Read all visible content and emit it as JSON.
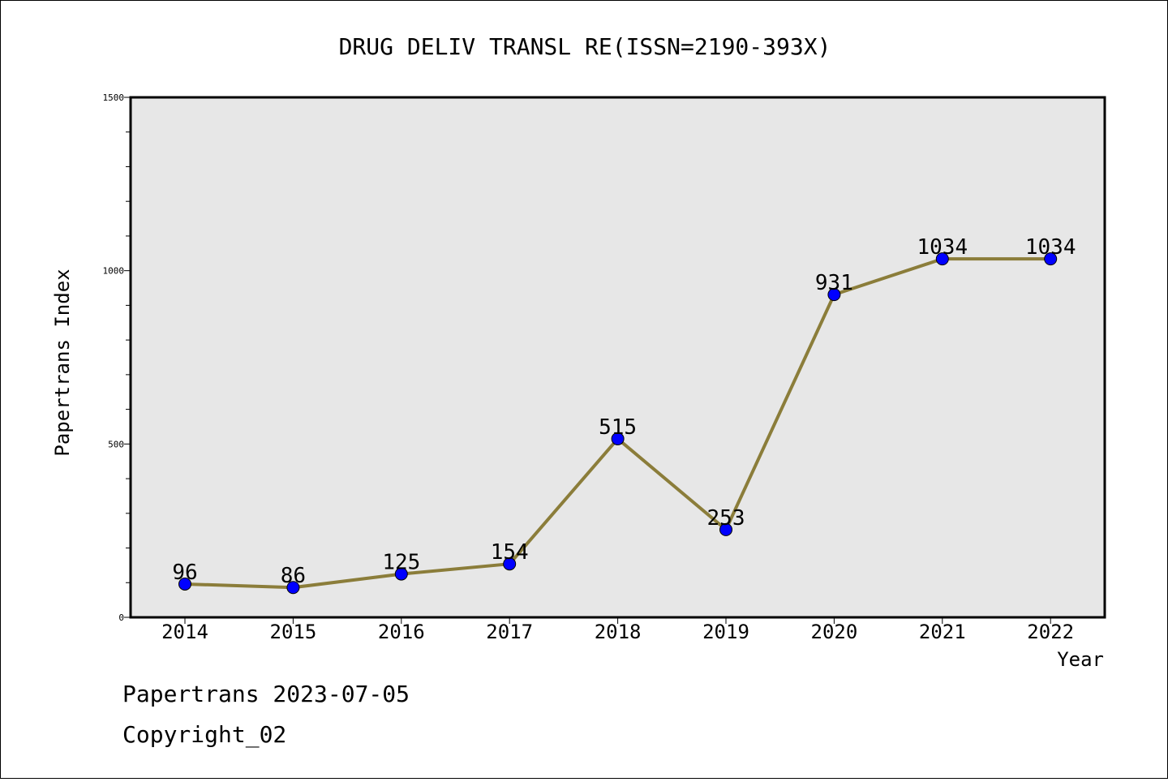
{
  "chart_data": {
    "type": "line",
    "title": "DRUG DELIV TRANSL RE(ISSN=2190-393X)",
    "xlabel": "Year",
    "ylabel": "Papertrans Index",
    "categories": [
      "2014",
      "2015",
      "2016",
      "2017",
      "2018",
      "2019",
      "2020",
      "2021",
      "2022"
    ],
    "series": [
      {
        "values": [
          96,
          86,
          125,
          154,
          515,
          253,
          931,
          1034,
          1034
        ]
      }
    ],
    "ylim": [
      0,
      1500
    ],
    "y_ticks": [
      0,
      500,
      1000,
      1500
    ],
    "y_ticks_label": [
      "0",
      "500",
      "1000",
      "1500"
    ],
    "grid": false,
    "line_color": "#8B7D3A",
    "marker_color": "#0000FF",
    "plot_background": "#E7E7E7"
  },
  "footer": {
    "line1": "Papertrans 2023-07-05",
    "line2": "Copyright_02"
  }
}
